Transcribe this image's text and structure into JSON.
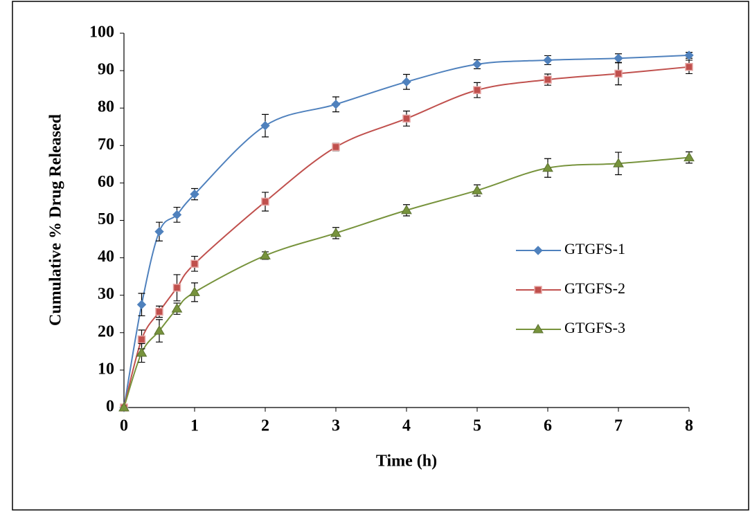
{
  "chart_data": {
    "type": "line",
    "x_label": "Time (h)",
    "y_label": "Cumulative % Drug Released",
    "x": [
      0,
      0.25,
      0.5,
      0.75,
      1,
      2,
      3,
      4,
      5,
      6,
      7,
      8
    ],
    "xlim": [
      0,
      8
    ],
    "xticks": [
      0,
      1,
      2,
      3,
      4,
      5,
      6,
      7,
      8
    ],
    "ylim": [
      0,
      100
    ],
    "yticks": [
      0,
      10,
      20,
      30,
      40,
      50,
      60,
      70,
      80,
      90,
      100
    ],
    "grid": false,
    "smooth": true,
    "legend_position": "right",
    "series": [
      {
        "name": "GTGFS-1",
        "color": "#4f81bd",
        "marker": "diamond",
        "values": [
          0,
          27.5,
          47,
          51.5,
          57,
          75.3,
          81,
          87,
          91.7,
          92.8,
          93.3,
          94.1
        ],
        "errors": [
          0,
          3,
          2.5,
          2,
          1.5,
          3,
          2,
          2,
          1.2,
          1.2,
          1.2,
          0.8
        ]
      },
      {
        "name": "GTGFS-2",
        "color": "#c0504d",
        "marker": "square",
        "values": [
          0,
          18.2,
          25.6,
          32,
          38.4,
          55,
          69.6,
          77.2,
          84.8,
          87.6,
          89.2,
          91
        ],
        "errors": [
          0,
          2.5,
          1.5,
          3.5,
          2,
          2.5,
          1,
          2,
          2,
          1.5,
          3,
          1.8
        ]
      },
      {
        "name": "GTGFS-3",
        "color": "#77933c",
        "marker": "triangle",
        "values": [
          0,
          14.6,
          20.5,
          26.4,
          30.8,
          40.6,
          46.6,
          52.7,
          58,
          64,
          65.2,
          66.8
        ],
        "errors": [
          0,
          2.5,
          3,
          1.5,
          2.5,
          1,
          1.5,
          1.5,
          1.5,
          2.5,
          3,
          1.5
        ]
      }
    ]
  }
}
